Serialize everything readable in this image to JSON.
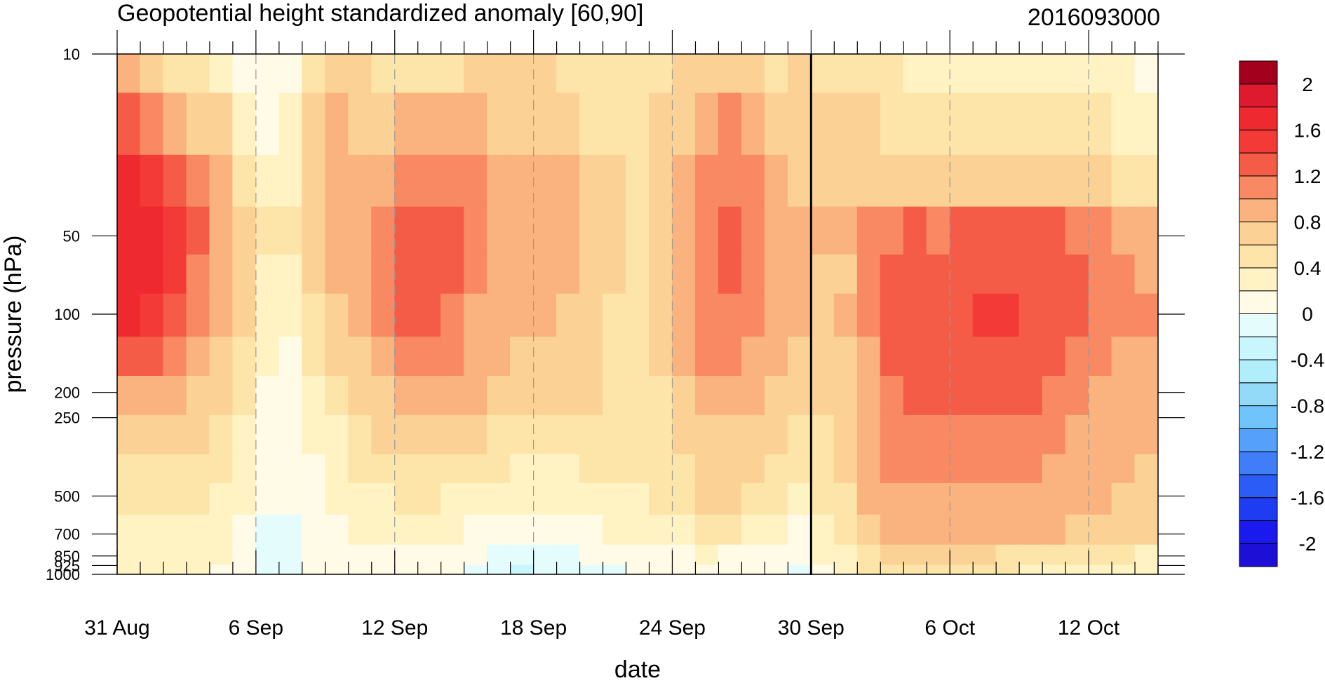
{
  "chart_data": {
    "type": "heatmap",
    "title": "Geopotential height standardized anomaly [60,90]",
    "right_title": "2016093000",
    "xlabel": "date",
    "ylabel": "pressure (hPa)",
    "x_tick_labels": [
      "31 Aug",
      "6 Sep",
      "12 Sep",
      "18 Sep",
      "24 Sep",
      "30 Sep",
      "6 Oct",
      "12 Oct"
    ],
    "x_tick_days": [
      0,
      6,
      12,
      18,
      24,
      30,
      36,
      42
    ],
    "x_range_days": [
      0,
      45
    ],
    "reference_line_day": 30,
    "y_ticks": [
      10,
      50,
      100,
      200,
      250,
      500,
      700,
      850,
      925,
      1000
    ],
    "y_scale": "log",
    "y_range": [
      10,
      1000
    ],
    "y_inverted": true,
    "colorbar": {
      "levels": [
        -2.2,
        -2.0,
        -1.8,
        -1.6,
        -1.4,
        -1.2,
        -1.0,
        -0.8,
        -0.6,
        -0.4,
        -0.2,
        0.0,
        0.2,
        0.4,
        0.6,
        0.8,
        1.0,
        1.2,
        1.4,
        1.6,
        1.8,
        2.0,
        2.2
      ],
      "labels": [
        "2",
        "1.6",
        "1.2",
        "0.8",
        "0.4",
        "0",
        "-0.4",
        "-0.8",
        "-1.2",
        "-1.6",
        "-2"
      ],
      "colors": [
        "#1e0fd6",
        "#1a1aee",
        "#1e3cf2",
        "#2c5cf6",
        "#3f7ef8",
        "#55a0fb",
        "#70c4fb",
        "#93daf8",
        "#b0eefa",
        "#c9f5fc",
        "#e5fcfd",
        "#fffbe6",
        "#fff3c3",
        "#fde4a9",
        "#fbd196",
        "#fab27e",
        "#f88962",
        "#f55c48",
        "#f33a36",
        "#ee2a30",
        "#dd1a2e",
        "#a3001e"
      ]
    },
    "cells": [
      [
        10,
        0.9,
        0.7,
        0.5,
        0.4,
        0.3,
        0.1,
        0.0,
        0.15,
        0.45,
        0.75,
        0.65,
        0.5,
        0.5,
        0.5,
        0.5,
        0.6,
        0.6,
        0.7,
        0.6,
        0.5,
        0.5,
        0.5,
        0.5,
        0.55,
        0.7,
        0.75,
        0.7,
        0.6,
        0.55,
        0.6,
        0.55,
        0.5,
        0.45,
        0.4,
        0.3,
        0.3,
        0.25,
        0.25,
        0.2,
        0.2,
        0.2,
        0.2,
        0.2,
        0.2,
        0.15
      ],
      [
        20,
        1.3,
        1.1,
        0.9,
        0.75,
        0.6,
        0.35,
        0.05,
        0.2,
        0.6,
        0.8,
        0.75,
        0.7,
        0.8,
        0.85,
        0.9,
        0.8,
        0.7,
        0.7,
        0.65,
        0.6,
        0.55,
        0.5,
        0.5,
        0.6,
        0.75,
        0.95,
        1.0,
        0.9,
        0.75,
        0.65,
        0.6,
        0.6,
        0.6,
        0.55,
        0.5,
        0.45,
        0.45,
        0.45,
        0.4,
        0.4,
        0.4,
        0.4,
        0.4,
        0.35,
        0.3
      ],
      [
        30,
        1.6,
        1.5,
        1.3,
        1.1,
        0.9,
        0.55,
        0.2,
        0.3,
        0.7,
        0.8,
        0.85,
        0.9,
        1.05,
        1.1,
        1.1,
        1.0,
        0.9,
        0.85,
        0.9,
        0.8,
        0.7,
        0.6,
        0.55,
        0.65,
        0.85,
        1.05,
        1.15,
        1.0,
        0.85,
        0.7,
        0.65,
        0.65,
        0.7,
        0.7,
        0.65,
        0.65,
        0.65,
        0.65,
        0.65,
        0.65,
        0.65,
        0.6,
        0.6,
        0.55,
        0.5
      ],
      [
        50,
        1.75,
        1.6,
        1.45,
        1.2,
        0.95,
        0.75,
        0.4,
        0.4,
        0.7,
        0.85,
        0.95,
        1.05,
        1.25,
        1.3,
        1.25,
        1.1,
        0.95,
        0.85,
        0.9,
        0.85,
        0.75,
        0.6,
        0.55,
        0.7,
        0.95,
        1.15,
        1.25,
        1.1,
        0.95,
        0.8,
        0.8,
        0.8,
        1.0,
        1.1,
        1.25,
        1.15,
        1.25,
        1.3,
        1.3,
        1.3,
        1.25,
        1.1,
        1.0,
        0.9,
        0.8
      ],
      [
        70,
        1.7,
        1.6,
        1.4,
        1.15,
        0.9,
        0.7,
        0.35,
        0.3,
        0.6,
        0.8,
        0.9,
        1.05,
        1.3,
        1.35,
        1.25,
        1.0,
        0.9,
        0.8,
        0.85,
        0.8,
        0.7,
        0.6,
        0.5,
        0.65,
        0.9,
        1.1,
        1.25,
        1.1,
        0.95,
        0.8,
        0.7,
        0.75,
        1.0,
        1.2,
        1.3,
        1.2,
        1.3,
        1.35,
        1.35,
        1.3,
        1.3,
        1.2,
        1.1,
        1.0,
        0.9
      ],
      [
        100,
        1.6,
        1.5,
        1.3,
        1.0,
        0.85,
        0.6,
        0.3,
        0.2,
        0.5,
        0.7,
        0.8,
        1.0,
        1.2,
        1.25,
        1.15,
        0.95,
        0.85,
        0.8,
        0.8,
        0.75,
        0.65,
        0.55,
        0.5,
        0.6,
        0.85,
        1.05,
        1.15,
        1.05,
        0.9,
        0.8,
        0.7,
        0.8,
        1.0,
        1.25,
        1.3,
        1.25,
        1.3,
        1.45,
        1.4,
        1.35,
        1.3,
        1.25,
        1.15,
        1.05,
        1.0
      ],
      [
        150,
        1.3,
        1.2,
        1.05,
        0.85,
        0.7,
        0.5,
        0.2,
        0.1,
        0.4,
        0.6,
        0.75,
        0.9,
        1.0,
        1.05,
        1.0,
        0.85,
        0.8,
        0.75,
        0.75,
        0.7,
        0.6,
        0.55,
        0.5,
        0.6,
        0.8,
        1.0,
        1.05,
        0.95,
        0.85,
        0.75,
        0.65,
        0.75,
        0.95,
        1.2,
        1.25,
        1.25,
        1.3,
        1.3,
        1.3,
        1.25,
        1.25,
        1.15,
        1.05,
        0.95,
        0.9
      ],
      [
        200,
        0.95,
        0.9,
        0.85,
        0.75,
        0.65,
        0.4,
        0.15,
        0.05,
        0.3,
        0.5,
        0.65,
        0.75,
        0.85,
        0.85,
        0.85,
        0.8,
        0.75,
        0.7,
        0.7,
        0.65,
        0.6,
        0.55,
        0.5,
        0.55,
        0.7,
        0.85,
        0.9,
        0.85,
        0.75,
        0.65,
        0.6,
        0.7,
        0.95,
        1.15,
        1.25,
        1.2,
        1.25,
        1.25,
        1.25,
        1.2,
        1.15,
        1.05,
        0.95,
        0.9,
        0.85
      ],
      [
        300,
        0.7,
        0.7,
        0.7,
        0.65,
        0.55,
        0.3,
        0.05,
        0.0,
        0.2,
        0.35,
        0.5,
        0.6,
        0.65,
        0.65,
        0.65,
        0.6,
        0.55,
        0.45,
        0.4,
        0.45,
        0.5,
        0.5,
        0.45,
        0.5,
        0.6,
        0.7,
        0.75,
        0.7,
        0.6,
        0.5,
        0.5,
        0.65,
        0.9,
        1.05,
        1.05,
        1.05,
        1.05,
        1.05,
        1.05,
        1.05,
        1.0,
        0.95,
        0.9,
        0.85,
        0.8
      ],
      [
        400,
        0.55,
        0.55,
        0.55,
        0.55,
        0.45,
        0.25,
        0.0,
        0.0,
        0.15,
        0.3,
        0.4,
        0.45,
        0.5,
        0.5,
        0.5,
        0.45,
        0.4,
        0.35,
        0.35,
        0.35,
        0.4,
        0.4,
        0.4,
        0.45,
        0.55,
        0.65,
        0.65,
        0.6,
        0.5,
        0.45,
        0.45,
        0.6,
        0.85,
        1.0,
        1.0,
        1.0,
        1.0,
        1.0,
        1.0,
        1.0,
        0.95,
        0.9,
        0.85,
        0.8,
        0.75
      ],
      [
        500,
        0.45,
        0.45,
        0.45,
        0.45,
        0.35,
        0.2,
        0.0,
        0.0,
        0.1,
        0.25,
        0.35,
        0.35,
        0.4,
        0.4,
        0.35,
        0.3,
        0.25,
        0.2,
        0.25,
        0.3,
        0.35,
        0.35,
        0.35,
        0.4,
        0.5,
        0.6,
        0.6,
        0.5,
        0.4,
        0.35,
        0.4,
        0.55,
        0.8,
        0.95,
        0.95,
        0.95,
        0.95,
        0.95,
        0.95,
        0.95,
        0.9,
        0.85,
        0.8,
        0.75,
        0.7
      ],
      [
        700,
        0.35,
        0.35,
        0.35,
        0.3,
        0.25,
        0.1,
        -0.1,
        -0.05,
        0.05,
        0.15,
        0.25,
        0.25,
        0.25,
        0.2,
        0.2,
        0.15,
        0.05,
        0.0,
        0.05,
        0.1,
        0.15,
        0.2,
        0.2,
        0.25,
        0.35,
        0.4,
        0.4,
        0.3,
        0.2,
        0.1,
        0.25,
        0.45,
        0.65,
        0.8,
        0.85,
        0.85,
        0.85,
        0.85,
        0.85,
        0.85,
        0.8,
        0.75,
        0.7,
        0.65,
        0.6
      ],
      [
        850,
        0.3,
        0.3,
        0.3,
        0.25,
        0.2,
        0.05,
        -0.1,
        -0.1,
        0.0,
        0.1,
        0.15,
        0.15,
        0.1,
        0.05,
        0.05,
        0.0,
        -0.1,
        -0.2,
        -0.15,
        -0.05,
        0.0,
        0.0,
        0.05,
        0.1,
        0.15,
        0.2,
        0.15,
        0.1,
        0.05,
        0.0,
        0.2,
        0.35,
        0.55,
        0.65,
        0.65,
        0.65,
        0.65,
        0.6,
        0.55,
        0.5,
        0.45,
        0.45,
        0.4,
        0.4,
        0.35
      ],
      [
        1000,
        0.3,
        0.3,
        0.3,
        0.25,
        0.15,
        0.0,
        -0.15,
        -0.15,
        0.0,
        0.05,
        0.1,
        0.1,
        0.05,
        0.0,
        0.0,
        -0.05,
        -0.15,
        -0.25,
        -0.2,
        -0.1,
        -0.05,
        -0.05,
        0.0,
        0.05,
        0.1,
        0.1,
        0.1,
        0.05,
        0.0,
        -0.05,
        0.15,
        0.3,
        0.45,
        0.5,
        0.5,
        0.5,
        0.5,
        0.45,
        0.4,
        0.35,
        0.3,
        0.3,
        0.25,
        0.25,
        0.2
      ]
    ]
  }
}
